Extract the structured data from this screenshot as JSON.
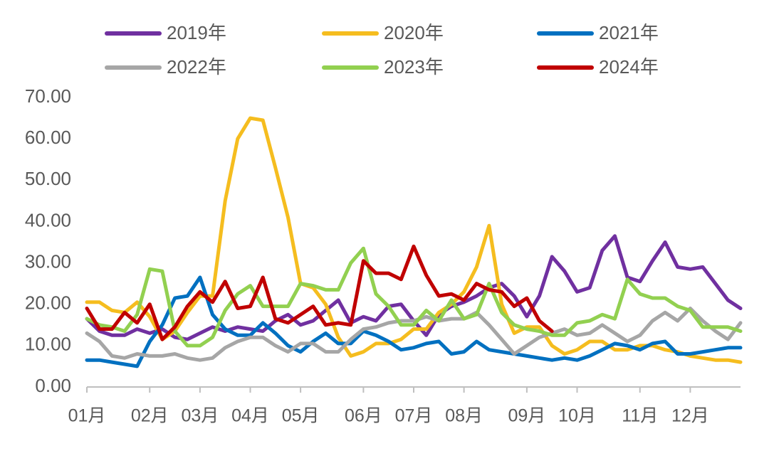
{
  "chart_data": {
    "type": "line",
    "categories": [
      "01月",
      null,
      null,
      null,
      null,
      "02月",
      null,
      null,
      null,
      "03月",
      null,
      null,
      null,
      "04月",
      null,
      null,
      null,
      "05月",
      null,
      null,
      null,
      null,
      "06月",
      null,
      null,
      null,
      "07月",
      null,
      null,
      null,
      "08月",
      null,
      null,
      null,
      null,
      "09月",
      null,
      null,
      null,
      "10月",
      null,
      null,
      null,
      null,
      "11月",
      null,
      null,
      null,
      "12月",
      null,
      null,
      null,
      null
    ],
    "ylim": [
      0,
      70
    ],
    "yticks": [
      {
        "value": 0,
        "label": "0.00"
      },
      {
        "value": 10,
        "label": "10.00"
      },
      {
        "value": 20,
        "label": "20.00"
      },
      {
        "value": 30,
        "label": "30.00"
      },
      {
        "value": 40,
        "label": "40.00"
      },
      {
        "value": 50,
        "label": "50.00"
      },
      {
        "value": 60,
        "label": "60.00"
      },
      {
        "value": 70,
        "label": "70.00"
      }
    ],
    "grid": false,
    "legend": "top",
    "series": [
      {
        "name": "2019年",
        "color": "#7030a0",
        "values": [
          16.5,
          13.5,
          12.5,
          12.5,
          14,
          13,
          14,
          12,
          11.5,
          13,
          14.5,
          13.5,
          14.5,
          14,
          13.5,
          16,
          17.5,
          15,
          16,
          18.5,
          21,
          15.5,
          17,
          16,
          19.5,
          20,
          16,
          12.5,
          17.5,
          19.5,
          20.5,
          22,
          24,
          25,
          22,
          17,
          22,
          31.5,
          28,
          23,
          24,
          33,
          36.5,
          26.5,
          25.5,
          30.5,
          35,
          29,
          28.5,
          29,
          25,
          21,
          19
        ]
      },
      {
        "name": "2020年",
        "color": "#f5bd1f",
        "values": [
          20.5,
          20.5,
          18.5,
          18,
          20.5,
          17,
          11.5,
          13.5,
          18,
          22,
          22,
          45,
          60,
          65,
          64.5,
          53,
          41,
          25,
          24,
          20,
          12,
          7.5,
          8.5,
          10.5,
          10.5,
          11.5,
          14,
          14,
          18,
          20,
          23,
          29,
          39,
          20,
          13,
          14.5,
          14.5,
          10,
          8,
          9,
          11,
          11,
          9,
          9,
          10,
          10,
          9,
          8.5,
          7.5,
          7,
          6.5,
          6.5,
          6
        ]
      },
      {
        "name": "2021年",
        "color": "#0070c0",
        "values": [
          6.5,
          6.5,
          6,
          5.5,
          5,
          11,
          15,
          21.5,
          22,
          26.5,
          17.5,
          14,
          12.5,
          12.5,
          15.5,
          13,
          10,
          8.5,
          11,
          13,
          10.5,
          10.5,
          13.5,
          12.5,
          11,
          9,
          9.5,
          10.5,
          11,
          8,
          8.5,
          11,
          9,
          8.5,
          8,
          7.5,
          7,
          6.5,
          7,
          6.5,
          7.5,
          9,
          10.5,
          10,
          9,
          10.5,
          11,
          8,
          8,
          8.5,
          9,
          9.5,
          9.5
        ]
      },
      {
        "name": "2022年",
        "color": "#a6a6a6",
        "values": [
          13,
          11,
          7.5,
          7,
          8,
          7.5,
          7.5,
          8,
          7,
          6.5,
          7,
          9.5,
          11,
          12,
          12,
          10,
          8.5,
          10.5,
          10.5,
          8.5,
          8.5,
          11.5,
          14,
          14.5,
          15.5,
          16,
          16,
          17,
          16,
          16.5,
          16.5,
          18,
          15,
          11.5,
          8,
          10,
          12,
          13,
          14,
          12.5,
          13,
          15,
          13,
          11,
          12.5,
          16,
          18,
          16,
          19,
          16,
          13.5,
          11.5,
          15.5
        ]
      },
      {
        "name": "2023年",
        "color": "#92d050",
        "values": [
          16.5,
          15,
          14.5,
          13.5,
          17.5,
          28.5,
          28,
          13.5,
          10,
          10,
          12,
          18.5,
          22.5,
          24.5,
          19.5,
          19.5,
          19.5,
          25,
          24.5,
          23.5,
          23.5,
          30,
          33.5,
          22.5,
          19.5,
          15,
          15,
          18.5,
          16,
          21,
          16.5,
          17.5,
          25,
          18,
          15,
          14,
          13.5,
          12.5,
          12.5,
          15.5,
          16,
          17.5,
          16.5,
          26,
          22.5,
          21.5,
          21.5,
          19.5,
          18.5,
          14.5,
          14.5,
          14.5,
          13.5
        ]
      },
      {
        "name": "2024年",
        "color": "#c00000",
        "values": [
          19,
          14,
          14,
          18,
          15.5,
          20,
          11.5,
          14.5,
          19.5,
          23,
          20.5,
          25.5,
          19,
          19.5,
          26.5,
          16.5,
          15.5,
          17.5,
          19.5,
          15,
          15.5,
          15,
          30.5,
          27.5,
          27.5,
          26,
          34,
          27,
          22,
          22.5,
          21,
          25,
          23.5,
          23,
          19.5,
          21.5,
          16,
          13.5,
          null,
          null,
          null,
          null,
          null,
          null,
          null,
          null,
          null,
          null,
          null,
          null,
          null,
          null,
          null
        ]
      }
    ]
  }
}
